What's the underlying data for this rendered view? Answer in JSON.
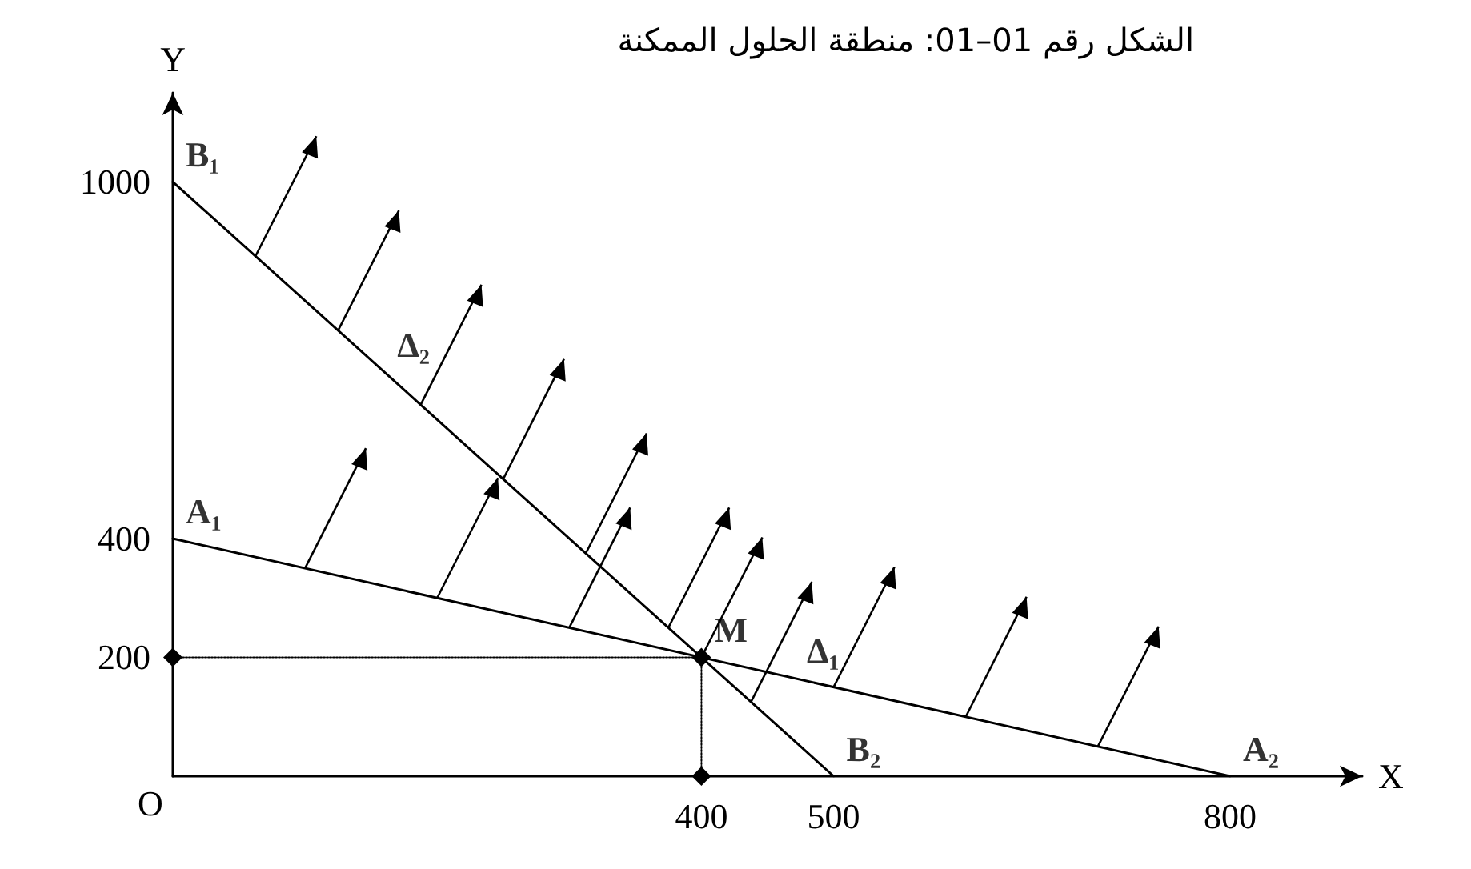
{
  "chart_data": {
    "type": "line",
    "title": "الشكل رقم 01–01: منطقة الحلول الممكنة",
    "xlabel": "X",
    "ylabel": "Y",
    "series": [
      {
        "x": [
          0,
          800
        ],
        "values": [
          400,
          0
        ],
        "color": "#000000",
        "marker": "none",
        "line_style": "solid"
      },
      {
        "x": [
          0,
          500
        ],
        "values": [
          1000,
          0
        ],
        "color": "#000000",
        "marker": "none",
        "line_style": "solid"
      },
      {
        "x": [
          0,
          400,
          400
        ],
        "values": [
          200,
          200,
          0
        ],
        "color": "#000000",
        "marker": "diamond",
        "line_style": "dotted"
      }
    ],
    "xlim": [
      0,
      900
    ],
    "ylim": [
      0,
      1150
    ],
    "xticks": [
      400,
      500,
      800
    ],
    "yticks": [
      200,
      400,
      1000
    ],
    "grid": false,
    "annotations": [
      "O",
      {
        "text": "B₁",
        "x": 0,
        "y": 1000
      },
      {
        "text": "A₁",
        "x": 0,
        "y": 400
      },
      {
        "text": "Δ₂",
        "x": 160,
        "y": 680
      },
      {
        "text": "Δ₁",
        "x": 470,
        "y": 165
      },
      {
        "text": "M",
        "x": 400,
        "y": 200
      },
      {
        "text": "B₂",
        "x": 500,
        "y": 0
      },
      {
        "text": "A₂",
        "x": 800,
        "y": 0
      }
    ]
  }
}
